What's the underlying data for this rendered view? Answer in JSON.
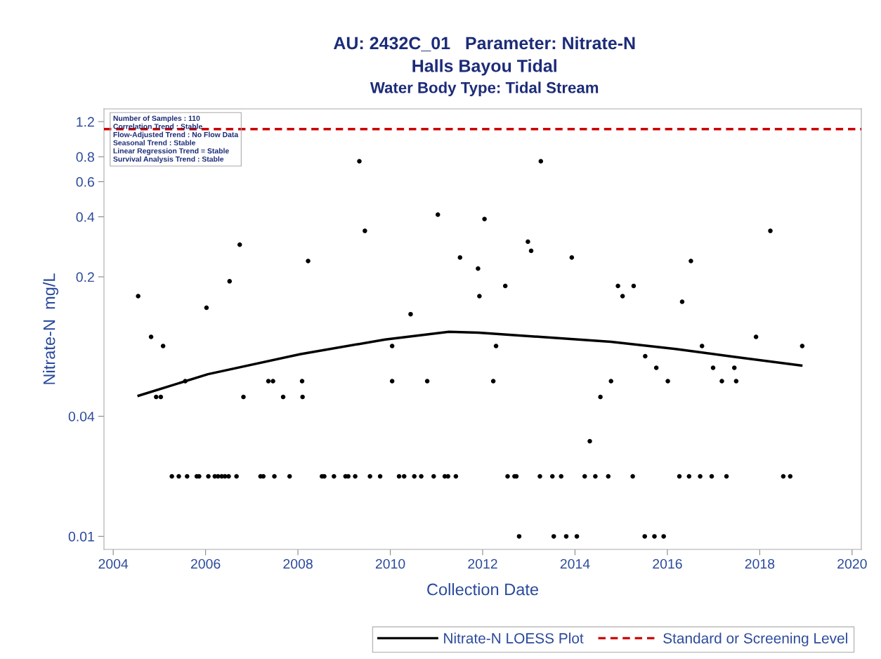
{
  "chart_data": {
    "type": "scatter",
    "title": "AU: 2432C_01   Parameter: Nitrate-N\nHalls Bayou Tidal",
    "subtitle": "Water Body Type: Tidal Stream",
    "xlabel": "Collection Date",
    "ylabel": "Nitrate-N  mg/L",
    "log": "y",
    "xlim": [
      2003.8,
      2020.2
    ],
    "xticks": [
      2004,
      2006,
      2008,
      2010,
      2012,
      2014,
      2016,
      2018,
      2020
    ],
    "ylim": [
      0.0086,
      1.39
    ],
    "yticks": [
      0.01,
      0.04,
      0.2,
      0.4,
      0.6,
      0.8,
      1.2
    ],
    "grid": false,
    "legend": "bottom",
    "marker": "circle",
    "annotations": [
      "Number of Samples : 110",
      "Correlation Trend : Stable",
      "Flow-Adjusted Trend : No Flow Data",
      "Seasonal Trend : Stable",
      "Linear Regression Trend = Stable",
      "Survival Analysis Trend : Stable"
    ],
    "ref_lines": [
      {
        "axis": "y",
        "value": 1.1,
        "label": "Standard or Screening Level",
        "color": "#cc0000",
        "line_style": "dashed"
      }
    ],
    "series": [
      {
        "color": "#000000",
        "x": [
          2004.54,
          2004.82,
          2005.08,
          2004.93,
          2005.03,
          2005.56,
          2006.02,
          2006.52,
          2006.74,
          2006.82,
          2007.36,
          2007.46,
          2007.68,
          2008.09,
          2008.1,
          2008.22,
          2009.33,
          2009.45,
          2010.04,
          2010.04,
          2010.44,
          2010.8,
          2011.03,
          2011.51,
          2011.9,
          2011.93,
          2012.04,
          2012.49,
          2012.29,
          2012.23,
          2012.98,
          2013.05,
          2013.26,
          2013.93,
          2014.32,
          2014.55,
          2014.78,
          2014.93,
          2015.03,
          2015.27,
          2015.52,
          2015.76,
          2016.01,
          2016.32,
          2016.51,
          2016.75,
          2016.99,
          2017.18,
          2017.45,
          2017.49,
          2017.92,
          2018.23,
          2018.92,
          2005.27,
          2005.42,
          2005.6,
          2005.81,
          2005.86,
          2006.06,
          2006.2,
          2006.27,
          2006.35,
          2006.42,
          2006.5,
          2006.67,
          2007.19,
          2007.25,
          2007.49,
          2007.82,
          2008.52,
          2008.57,
          2008.78,
          2009.03,
          2009.09,
          2009.24,
          2009.56,
          2009.78,
          2010.19,
          2010.3,
          2010.52,
          2010.67,
          2010.94,
          2011.18,
          2011.25,
          2011.42,
          2012.54,
          2012.69,
          2012.73,
          2013.24,
          2013.51,
          2013.7,
          2014.21,
          2014.44,
          2014.72,
          2015.25,
          2016.26,
          2016.47,
          2016.71,
          2016.96,
          2017.28,
          2018.51,
          2018.66,
          2012.79,
          2013.54,
          2013.81,
          2014.04,
          2015.51,
          2015.72,
          2015.92
        ],
        "values": [
          0.16,
          0.1,
          0.09,
          0.05,
          0.05,
          0.06,
          0.14,
          0.19,
          0.29,
          0.05,
          0.06,
          0.06,
          0.05,
          0.06,
          0.05,
          0.24,
          0.76,
          0.34,
          0.09,
          0.06,
          0.13,
          0.06,
          0.41,
          0.25,
          0.22,
          0.16,
          0.39,
          0.18,
          0.09,
          0.06,
          0.3,
          0.27,
          0.76,
          0.25,
          0.03,
          0.05,
          0.06,
          0.18,
          0.16,
          0.18,
          0.08,
          0.07,
          0.06,
          0.15,
          0.24,
          0.09,
          0.07,
          0.06,
          0.07,
          0.06,
          0.1,
          0.34,
          0.09,
          0.02,
          0.02,
          0.02,
          0.02,
          0.02,
          0.02,
          0.02,
          0.02,
          0.02,
          0.02,
          0.02,
          0.02,
          0.02,
          0.02,
          0.02,
          0.02,
          0.02,
          0.02,
          0.02,
          0.02,
          0.02,
          0.02,
          0.02,
          0.02,
          0.02,
          0.02,
          0.02,
          0.02,
          0.02,
          0.02,
          0.02,
          0.02,
          0.02,
          0.02,
          0.02,
          0.02,
          0.02,
          0.02,
          0.02,
          0.02,
          0.02,
          0.02,
          0.02,
          0.02,
          0.02,
          0.02,
          0.02,
          0.02,
          0.02,
          0.01,
          0.01,
          0.01,
          0.01,
          0.01,
          0.01,
          0.01
        ]
      },
      {
        "type": "line",
        "name": "Nitrate-N LOESS Plot",
        "color": "#000000",
        "marker": "none",
        "line_style": "solid",
        "x": [
          2004.55,
          2006.05,
          2008.06,
          2009.89,
          2011.27,
          2011.91,
          2014.78,
          2016.18,
          2017.4,
          2018.9
        ],
        "values": [
          0.0507,
          0.065,
          0.082,
          0.097,
          0.106,
          0.105,
          0.0945,
          0.087,
          0.0797,
          0.0718
        ]
      }
    ]
  }
}
